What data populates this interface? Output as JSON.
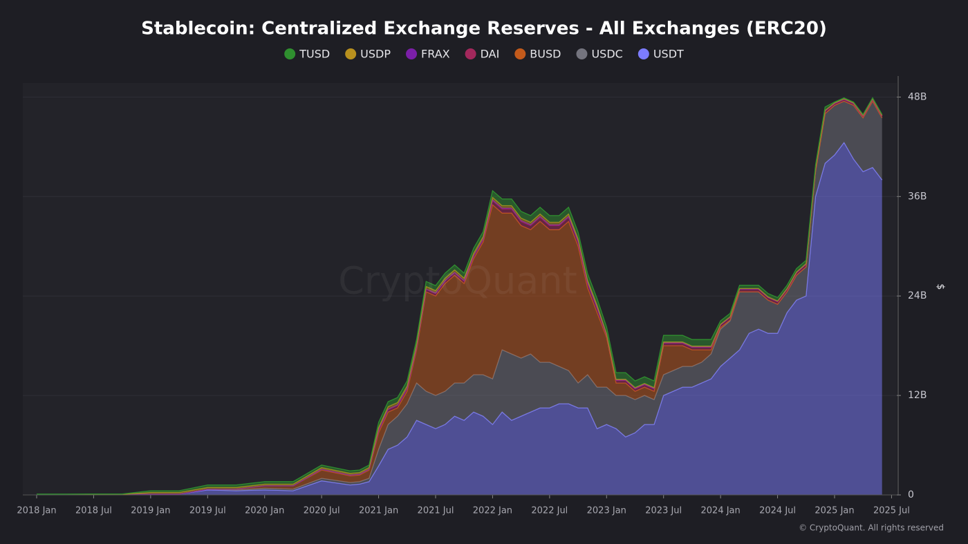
{
  "chart_data": {
    "type": "stacked_area",
    "title": "Stablecoin: Centralized Exchange Reserves - All Exchanges (ERC20)",
    "watermark": "CryptoQuant",
    "footer": "© CryptoQuant. All rights reserved",
    "ylabel": "$",
    "y_axis_side": "right",
    "grid": true,
    "x": [
      "2018-01",
      "2018-04",
      "2018-07",
      "2018-10",
      "2019-01",
      "2019-04",
      "2019-07",
      "2019-10",
      "2020-01",
      "2020-04",
      "2020-07",
      "2020-10",
      "2020-11",
      "2020-12",
      "2021-01",
      "2021-02",
      "2021-03",
      "2021-04",
      "2021-05",
      "2021-06",
      "2021-07",
      "2021-08",
      "2021-09",
      "2021-10",
      "2021-11",
      "2021-12",
      "2022-01",
      "2022-02",
      "2022-03",
      "2022-04",
      "2022-05",
      "2022-06",
      "2022-07",
      "2022-08",
      "2022-09",
      "2022-10",
      "2022-11",
      "2022-12",
      "2023-01",
      "2023-02",
      "2023-03",
      "2023-04",
      "2023-05",
      "2023-06",
      "2023-07",
      "2023-08",
      "2023-09",
      "2023-10",
      "2023-11",
      "2023-12",
      "2024-01",
      "2024-02",
      "2024-03",
      "2024-04",
      "2024-05",
      "2024-06",
      "2024-07",
      "2024-08",
      "2024-09",
      "2024-10",
      "2024-11",
      "2024-12",
      "2025-01",
      "2025-02",
      "2025-03",
      "2025-04",
      "2025-05",
      "2025-06"
    ],
    "xticks": [
      {
        "value": "2018-01",
        "label": "2018 Jan"
      },
      {
        "value": "2018-07",
        "label": "2018 Jul"
      },
      {
        "value": "2019-01",
        "label": "2019 Jan"
      },
      {
        "value": "2019-07",
        "label": "2019 Jul"
      },
      {
        "value": "2020-01",
        "label": "2020 Jan"
      },
      {
        "value": "2020-07",
        "label": "2020 Jul"
      },
      {
        "value": "2021-01",
        "label": "2021 Jan"
      },
      {
        "value": "2021-07",
        "label": "2021 Jul"
      },
      {
        "value": "2022-01",
        "label": "2022 Jan"
      },
      {
        "value": "2022-07",
        "label": "2022 Jul"
      },
      {
        "value": "2023-01",
        "label": "2023 Jan"
      },
      {
        "value": "2023-07",
        "label": "2023 Jul"
      },
      {
        "value": "2024-01",
        "label": "2024 Jan"
      },
      {
        "value": "2024-07",
        "label": "2024 Jul"
      },
      {
        "value": "2025-01",
        "label": "2025 Jan"
      },
      {
        "value": "2025-07",
        "label": "2025 Jul"
      }
    ],
    "ylim": [
      0,
      49.7
    ],
    "yticks": [
      0,
      {
        "value": 12,
        "label": "12B"
      },
      {
        "value": 24,
        "label": "24B"
      },
      {
        "value": 36,
        "label": "36B"
      },
      {
        "value": 48,
        "label": "48B"
      }
    ],
    "series": [
      {
        "name": "TUSD",
        "color": "#2f8f2f",
        "values": [
          0.03,
          0.03,
          0.05,
          0.05,
          0.2,
          0.2,
          0.3,
          0.3,
          0.3,
          0.3,
          0.3,
          0.3,
          0.3,
          0.3,
          0.6,
          0.6,
          0.6,
          0.6,
          0.6,
          0.6,
          0.6,
          0.6,
          0.6,
          0.6,
          0.6,
          0.6,
          0.8,
          0.8,
          0.8,
          0.8,
          0.8,
          0.8,
          0.8,
          0.8,
          0.8,
          0.8,
          0.8,
          0.8,
          0.8,
          0.8,
          0.8,
          0.8,
          0.8,
          0.8,
          0.8,
          0.8,
          0.8,
          0.8,
          0.8,
          0.8,
          0.4,
          0.4,
          0.4,
          0.4,
          0.4,
          0.4,
          0.4,
          0.4,
          0.4,
          0.4,
          0.4,
          0.4,
          0.1,
          0.1,
          0.1,
          0.1,
          0.1,
          0.1
        ]
      },
      {
        "name": "USDP",
        "color": "#b8901e",
        "values": [
          0.02,
          0.02,
          0.02,
          0.02,
          0.2,
          0.2,
          0.2,
          0.2,
          0.2,
          0.2,
          0.2,
          0.2,
          0.2,
          0.2,
          0.3,
          0.3,
          0.3,
          0.3,
          0.3,
          0.3,
          0.3,
          0.3,
          0.3,
          0.3,
          0.3,
          0.3,
          0.3,
          0.3,
          0.3,
          0.3,
          0.3,
          0.3,
          0.3,
          0.3,
          0.3,
          0.3,
          0.3,
          0.3,
          0.1,
          0.1,
          0.1,
          0.1,
          0.1,
          0.1,
          0.1,
          0.1,
          0.1,
          0.1,
          0.1,
          0.1,
          0.05,
          0.05,
          0.05,
          0.05,
          0.05,
          0.05,
          0.05,
          0.05,
          0.05,
          0.05,
          0.05,
          0.05,
          0.05,
          0.05,
          0.05,
          0.05,
          0.05,
          0.05
        ]
      },
      {
        "name": "FRAX",
        "color": "#7b1fa8",
        "values": [
          0,
          0,
          0,
          0,
          0,
          0,
          0,
          0,
          0,
          0,
          0,
          0,
          0,
          0,
          0.05,
          0.05,
          0.05,
          0.05,
          0.05,
          0.05,
          0.05,
          0.05,
          0.05,
          0.05,
          0.05,
          0.05,
          0.1,
          0.1,
          0.1,
          0.1,
          0.1,
          0.1,
          0.1,
          0.1,
          0.1,
          0.1,
          0.1,
          0.1,
          0.05,
          0.05,
          0.05,
          0.05,
          0.05,
          0.05,
          0.05,
          0.05,
          0.05,
          0.05,
          0.05,
          0.05,
          0.05,
          0.05,
          0.05,
          0.05,
          0.05,
          0.05,
          0.05,
          0.05,
          0.05,
          0.05,
          0.05,
          0.05,
          0.05,
          0.05,
          0.05,
          0.05,
          0.05,
          0.05
        ]
      },
      {
        "name": "DAI",
        "color": "#a3285c",
        "values": [
          0,
          0,
          0,
          0,
          0,
          0,
          0,
          0,
          0,
          0,
          0.1,
          0.1,
          0.1,
          0.1,
          0.3,
          0.3,
          0.3,
          0.3,
          0.3,
          0.3,
          0.3,
          0.3,
          0.3,
          0.3,
          0.3,
          0.3,
          0.5,
          0.5,
          0.5,
          0.5,
          0.5,
          0.5,
          0.5,
          0.5,
          0.5,
          0.5,
          0.5,
          0.5,
          0.3,
          0.3,
          0.3,
          0.3,
          0.3,
          0.3,
          0.3,
          0.3,
          0.3,
          0.3,
          0.3,
          0.3,
          0.3,
          0.3,
          0.3,
          0.3,
          0.3,
          0.3,
          0.3,
          0.3,
          0.3,
          0.3,
          0.3,
          0.3,
          0.2,
          0.2,
          0.2,
          0.2,
          0.2,
          0.2
        ]
      },
      {
        "name": "BUSD",
        "color": "#c35a1b",
        "values": [
          0,
          0,
          0,
          0,
          0,
          0,
          0,
          0.1,
          0.3,
          0.4,
          1.0,
          0.8,
          0.8,
          1.0,
          2.0,
          1.5,
          1.0,
          1.5,
          4.0,
          12,
          12,
          13,
          13,
          12,
          14,
          16,
          21,
          16.5,
          17,
          16,
          15,
          17,
          16,
          16.5,
          18,
          16.5,
          10.5,
          9,
          6,
          1.5,
          1.5,
          1.0,
          1.0,
          1.0,
          3.5,
          3.0,
          2.5,
          2.0,
          1.5,
          0.5,
          0.2,
          0.1,
          0,
          0,
          0,
          0,
          0,
          0,
          0,
          0,
          0,
          0,
          0,
          0,
          0,
          0,
          0,
          0
        ]
      },
      {
        "name": "USDC",
        "color": "#74747e",
        "values": [
          0,
          0,
          0,
          0,
          0,
          0,
          0.1,
          0.1,
          0.2,
          0.2,
          0.3,
          0.3,
          0.3,
          0.4,
          2.0,
          3.0,
          3.5,
          4.0,
          4.5,
          4.0,
          4.0,
          4.0,
          4.0,
          4.5,
          4.5,
          5.0,
          5.5,
          7.5,
          8.0,
          7.0,
          7.0,
          5.5,
          5.5,
          4.5,
          4.0,
          3.0,
          4.0,
          5.0,
          4.5,
          4.0,
          5.0,
          4.0,
          3.5,
          3.0,
          2.5,
          2.5,
          2.5,
          2.5,
          2.5,
          3.0,
          4.5,
          4.5,
          7.0,
          5.0,
          4.5,
          4.0,
          3.5,
          2.5,
          3.0,
          3.5,
          3.0,
          6.0,
          6.0,
          5.0,
          6.5,
          6.5,
          8.0,
          7.5
        ]
      },
      {
        "name": "USDT",
        "color": "#7c7cff",
        "values": [
          0.05,
          0.05,
          0.05,
          0.05,
          0.1,
          0.1,
          0.6,
          0.5,
          0.6,
          0.5,
          1.7,
          1.2,
          1.3,
          1.6,
          3.5,
          5.5,
          6.0,
          7.0,
          9.0,
          8.5,
          8.0,
          8.5,
          9.5,
          9.0,
          10.0,
          9.5,
          8.5,
          10.0,
          9.0,
          9.5,
          10.0,
          10.5,
          10.5,
          11.0,
          11.0,
          10.5,
          10.5,
          8.0,
          8.5,
          8.0,
          7.0,
          7.5,
          8.5,
          8.5,
          12.0,
          12.5,
          13.0,
          13.0,
          13.5,
          14.0,
          15.5,
          16.5,
          17.5,
          19.5,
          20.0,
          19.5,
          19.5,
          22.0,
          23.5,
          24.0,
          36.0,
          40.0,
          41.0,
          42.5,
          40.5,
          39.0,
          39.5,
          38.0
        ]
      }
    ]
  }
}
